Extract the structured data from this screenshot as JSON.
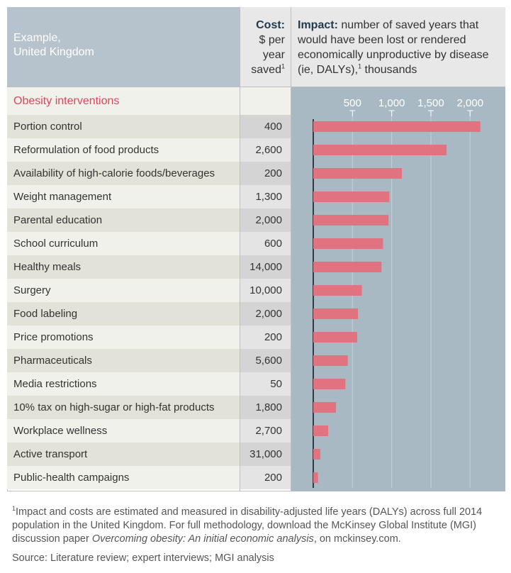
{
  "header": {
    "example_line1": "Example,",
    "example_line2": "United Kingdom",
    "cost_title": "Cost:",
    "cost_line2": "$ per",
    "cost_line3": "year",
    "cost_line4": "saved",
    "cost_sup": "1",
    "impact_title": "Impact:",
    "impact_text_a": "number of saved years that would have been lost or rendered economically unproductive by disease (ie, DALYs),",
    "impact_sup": "1",
    "impact_text_b": "thousands"
  },
  "section_title": "Obesity interventions",
  "chart_data": {
    "type": "bar",
    "orientation": "horizontal",
    "categories": [
      "Portion control",
      "Reformulation of food products",
      "Availability of high-calorie foods/beverages",
      "Weight management",
      "Parental education",
      "School curriculum",
      "Healthy meals",
      "Surgery",
      "Food labeling",
      "Price promotions",
      "Pharmaceuticals",
      "Media restrictions",
      "10% tax on high-sugar or high-fat products",
      "Workplace wellness",
      "Active transport",
      "Public-health campaigns"
    ],
    "costs": [
      "400",
      "2,600",
      "200",
      "1,300",
      "2,000",
      "600",
      "14,000",
      "10,000",
      "2,000",
      "200",
      "5,600",
      "50",
      "1,800",
      "2,700",
      "31,000",
      "200"
    ],
    "values": [
      2130,
      1700,
      1130,
      970,
      960,
      890,
      870,
      620,
      570,
      560,
      440,
      410,
      290,
      190,
      90,
      60
    ],
    "xticks": [
      500,
      1000,
      1500,
      2000
    ],
    "xtick_labels": [
      "500",
      "1,000",
      "1,500",
      "2,000"
    ],
    "xlim": [
      0,
      2350
    ],
    "bar_color": "#e0737f",
    "plot_bg": "#a9b9c4"
  },
  "footnote": {
    "sup": "1",
    "text_a": "Impact and costs are estimated and measured in disability-adjusted life years (DALYs) across full 2014 population in the United Kingdom. For full methodology, download the McKinsey Global Institute (MGI) discussion paper ",
    "italic": "Overcoming obesity: An initial economic analysis",
    "text_b": ", on mckinsey.com."
  },
  "source": "Source: Literature review; expert interviews; MGI analysis"
}
